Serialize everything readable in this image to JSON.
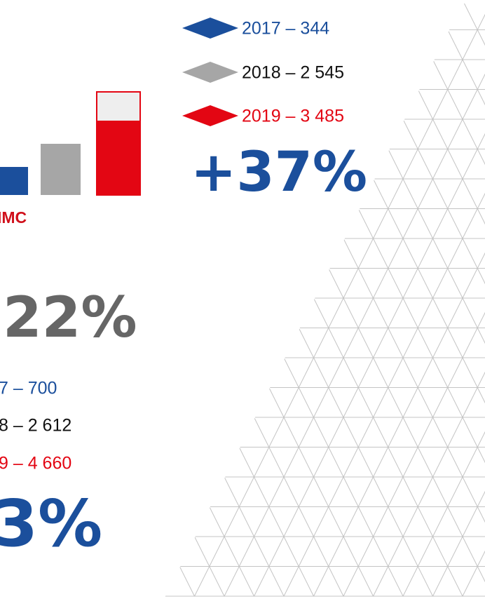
{
  "top_legend": [
    {
      "label": "2017 – 344"
    },
    {
      "label": "2018 – 2 545"
    },
    {
      "label": "2019 – 3 485"
    }
  ],
  "top_growth": "+37%",
  "section_label": "IMC",
  "middle_growth": "22%",
  "bottom_legend": [
    {
      "label": "7 – 700"
    },
    {
      "label": "8 – 2 612"
    },
    {
      "label": "9 – 4 660"
    }
  ],
  "bottom_growth": "3%"
}
